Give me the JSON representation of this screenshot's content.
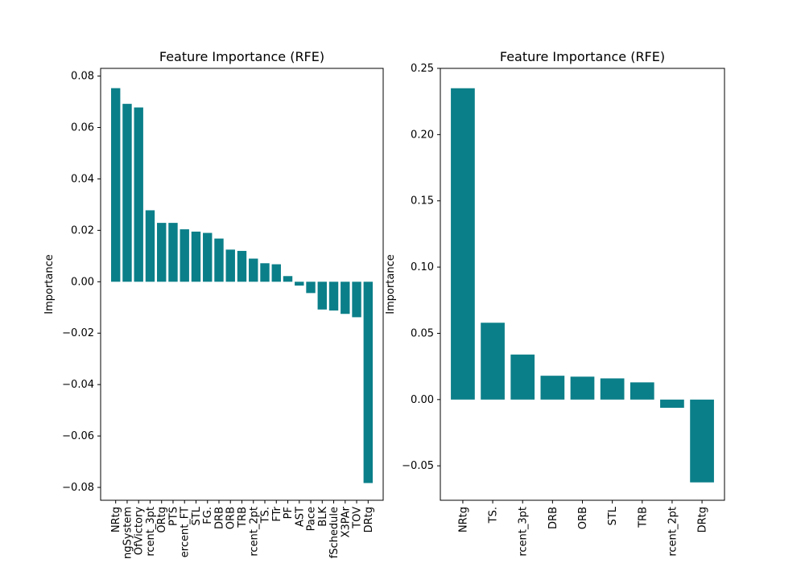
{
  "colors": {
    "bar": "#0b7f89",
    "axis": "#000000",
    "background": "#ffffff"
  },
  "chart_data": [
    {
      "type": "bar",
      "title": "Feature Importance (RFE)",
      "xlabel": "",
      "ylabel": "Importance",
      "ylim": [
        -0.085,
        0.083
      ],
      "yticks": [
        -0.08,
        -0.06,
        -0.04,
        -0.02,
        0.0,
        0.02,
        0.04,
        0.06,
        0.08
      ],
      "ytick_labels": [
        "−0.08",
        "−0.06",
        "−0.04",
        "−0.02",
        "0.00",
        "0.02",
        "0.04",
        "0.06",
        "0.08"
      ],
      "grid": false,
      "categories": [
        "NRtg",
        "ngSystem",
        "OfVictory",
        "rcent_3pt",
        "ORtg",
        "PTS",
        "ercent_FT",
        "STL",
        "FG.",
        "DRB",
        "ORB",
        "TRB",
        "rcent_2pt",
        "TS.",
        "FTr",
        "PF",
        "AST",
        "Pace",
        "BLK",
        "fSchedule",
        "X3PAr",
        "TOV",
        "DRtg"
      ],
      "values": [
        0.0753,
        0.0692,
        0.0678,
        0.0278,
        0.0229,
        0.0229,
        0.0204,
        0.0195,
        0.019,
        0.0168,
        0.0125,
        0.012,
        0.009,
        0.0072,
        0.0068,
        0.0022,
        -0.0015,
        -0.0044,
        -0.0108,
        -0.0112,
        -0.0125,
        -0.0138,
        -0.0783
      ]
    },
    {
      "type": "bar",
      "title": "Feature Importance (RFE)",
      "xlabel": "",
      "ylabel": "Importance",
      "ylim": [
        -0.076,
        0.25
      ],
      "yticks": [
        -0.05,
        0.0,
        0.05,
        0.1,
        0.15,
        0.2,
        0.25
      ],
      "ytick_labels": [
        "−0.05",
        "0.00",
        "0.05",
        "0.10",
        "0.15",
        "0.20",
        "0.25"
      ],
      "grid": false,
      "categories": [
        "NRtg",
        "TS.",
        "rcent_3pt",
        "DRB",
        "ORB",
        "STL",
        "TRB",
        "rcent_2pt",
        "DRtg"
      ],
      "values": [
        0.235,
        0.058,
        0.034,
        0.018,
        0.0173,
        0.016,
        0.013,
        -0.0062,
        -0.0625
      ]
    }
  ]
}
